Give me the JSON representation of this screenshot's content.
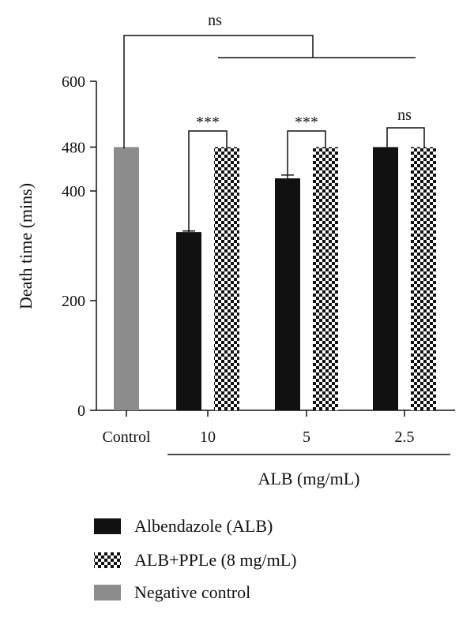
{
  "chart_data": {
    "type": "bar",
    "title": "",
    "ylabel": "Death time (mins)",
    "xlabel": "ALB (mg/mL)",
    "ylim": [
      0,
      600
    ],
    "yticks": [
      0,
      200,
      400,
      480,
      600
    ],
    "grid": false,
    "legend_position": "bottom",
    "control": {
      "label": "Control",
      "value": 480,
      "color": "#8c8c8c"
    },
    "categories": [
      "10",
      "5",
      "2.5"
    ],
    "series": [
      {
        "name": "Albendazole (ALB)",
        "values": [
          325,
          423,
          480
        ],
        "errors": [
          2,
          6,
          0
        ],
        "color": "#111111",
        "pattern": "solid"
      },
      {
        "name": "ALB+PPLe (8 mg/mL)",
        "values": [
          480,
          480,
          480
        ],
        "errors": [
          0,
          0,
          0
        ],
        "pattern": "checker"
      }
    ],
    "legend": [
      {
        "label": "Albendazole (ALB)",
        "swatch": "solid",
        "color": "#111111"
      },
      {
        "label": "ALB+PPLe (8 mg/mL)",
        "swatch": "checker"
      },
      {
        "label": "Negative control",
        "swatch": "solid",
        "color": "#8c8c8c"
      }
    ],
    "significance": [
      {
        "label": "ns",
        "compare": "Control vs all ALB groups"
      },
      {
        "label": "***",
        "compare": "10: ALB vs ALB+PPLe"
      },
      {
        "label": "***",
        "compare": "5: ALB vs ALB+PPLe"
      },
      {
        "label": "ns",
        "compare": "2.5: ALB vs ALB+PPLe"
      }
    ]
  }
}
